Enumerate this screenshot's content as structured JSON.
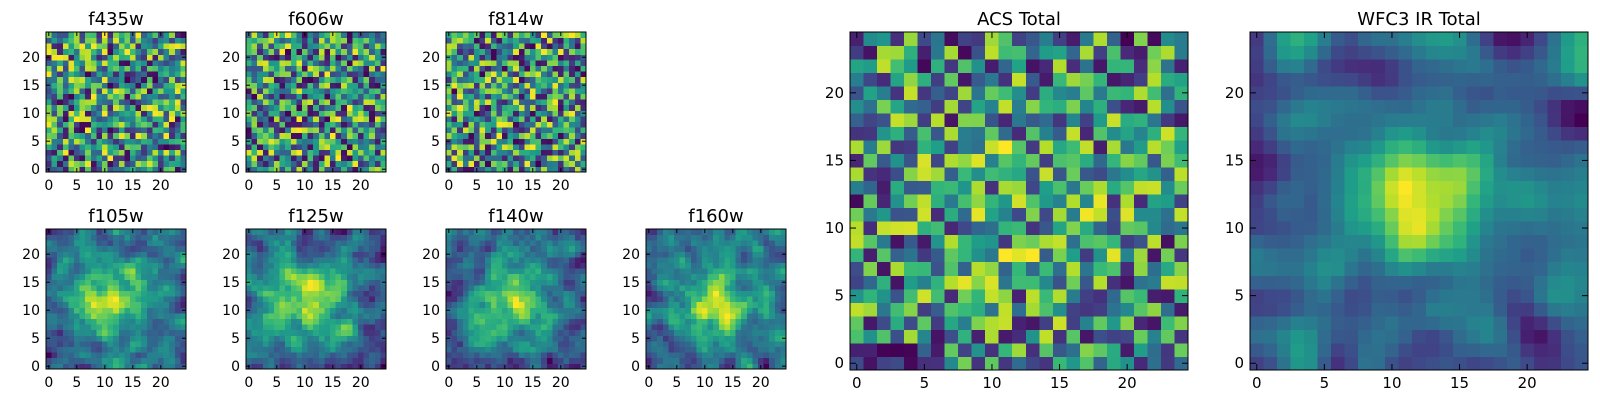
{
  "chart_data": [
    {
      "name": "f435w",
      "type": "heatmap",
      "title": "f435w",
      "grid_size": 25,
      "colormap": "viridis",
      "seed": 11,
      "smoothness": 0,
      "blob": null,
      "xlim": [
        0,
        24
      ],
      "ylim": [
        0,
        24
      ],
      "xticks": [
        {
          "v": 0,
          "label": "0"
        },
        {
          "v": 5,
          "label": "5"
        },
        {
          "v": 10,
          "label": "10"
        },
        {
          "v": 15,
          "label": "15"
        },
        {
          "v": 20,
          "label": "20"
        }
      ],
      "yticks": [
        {
          "v": 0,
          "label": "0"
        },
        {
          "v": 5,
          "label": "5"
        },
        {
          "v": 10,
          "label": "10"
        },
        {
          "v": 15,
          "label": "15"
        },
        {
          "v": 20,
          "label": "20"
        }
      ]
    },
    {
      "name": "f606w",
      "type": "heatmap",
      "title": "f606w",
      "grid_size": 25,
      "colormap": "viridis",
      "seed": 23,
      "smoothness": 0,
      "blob": null,
      "xlim": [
        0,
        24
      ],
      "ylim": [
        0,
        24
      ],
      "xticks": [
        {
          "v": 0,
          "label": "0"
        },
        {
          "v": 5,
          "label": "5"
        },
        {
          "v": 10,
          "label": "10"
        },
        {
          "v": 15,
          "label": "15"
        },
        {
          "v": 20,
          "label": "20"
        }
      ],
      "yticks": [
        {
          "v": 0,
          "label": "0"
        },
        {
          "v": 5,
          "label": "5"
        },
        {
          "v": 10,
          "label": "10"
        },
        {
          "v": 15,
          "label": "15"
        },
        {
          "v": 20,
          "label": "20"
        }
      ]
    },
    {
      "name": "f814w",
      "type": "heatmap",
      "title": "f814w",
      "grid_size": 25,
      "colormap": "viridis",
      "seed": 37,
      "smoothness": 0,
      "blob": null,
      "xlim": [
        0,
        24
      ],
      "ylim": [
        0,
        24
      ],
      "xticks": [
        {
          "v": 0,
          "label": "0"
        },
        {
          "v": 5,
          "label": "5"
        },
        {
          "v": 10,
          "label": "10"
        },
        {
          "v": 15,
          "label": "15"
        },
        {
          "v": 20,
          "label": "20"
        }
      ],
      "yticks": [
        {
          "v": 0,
          "label": "0"
        },
        {
          "v": 5,
          "label": "5"
        },
        {
          "v": 10,
          "label": "10"
        },
        {
          "v": 15,
          "label": "15"
        },
        {
          "v": 20,
          "label": "20"
        }
      ]
    },
    {
      "name": "f105w",
      "type": "heatmap",
      "title": "f105w",
      "grid_size": 25,
      "colormap": "viridis",
      "seed": 41,
      "smoothness": 1,
      "blob": {
        "center_x": 11,
        "center_y": 12,
        "sigma": 5.5,
        "amplitude": 0.5
      },
      "xlim": [
        0,
        24
      ],
      "ylim": [
        0,
        24
      ],
      "xticks": [
        {
          "v": 0,
          "label": "0"
        },
        {
          "v": 5,
          "label": "5"
        },
        {
          "v": 10,
          "label": "10"
        },
        {
          "v": 15,
          "label": "15"
        },
        {
          "v": 20,
          "label": "20"
        }
      ],
      "yticks": [
        {
          "v": 0,
          "label": "0"
        },
        {
          "v": 5,
          "label": "5"
        },
        {
          "v": 10,
          "label": "10"
        },
        {
          "v": 15,
          "label": "15"
        },
        {
          "v": 20,
          "label": "20"
        }
      ]
    },
    {
      "name": "f125w",
      "type": "heatmap",
      "title": "f125w",
      "grid_size": 25,
      "colormap": "viridis",
      "seed": 53,
      "smoothness": 1,
      "blob": {
        "center_x": 11,
        "center_y": 12,
        "sigma": 5.0,
        "amplitude": 0.45
      },
      "xlim": [
        0,
        24
      ],
      "ylim": [
        0,
        24
      ],
      "xticks": [
        {
          "v": 0,
          "label": "0"
        },
        {
          "v": 5,
          "label": "5"
        },
        {
          "v": 10,
          "label": "10"
        },
        {
          "v": 15,
          "label": "15"
        },
        {
          "v": 20,
          "label": "20"
        }
      ],
      "yticks": [
        {
          "v": 0,
          "label": "0"
        },
        {
          "v": 5,
          "label": "5"
        },
        {
          "v": 10,
          "label": "10"
        },
        {
          "v": 15,
          "label": "15"
        },
        {
          "v": 20,
          "label": "20"
        }
      ]
    },
    {
      "name": "f140w",
      "type": "heatmap",
      "title": "f140w",
      "grid_size": 25,
      "colormap": "viridis",
      "seed": 67,
      "smoothness": 1,
      "blob": {
        "center_x": 11,
        "center_y": 12,
        "sigma": 5.5,
        "amplitude": 0.5
      },
      "xlim": [
        0,
        24
      ],
      "ylim": [
        0,
        24
      ],
      "xticks": [
        {
          "v": 0,
          "label": "0"
        },
        {
          "v": 5,
          "label": "5"
        },
        {
          "v": 10,
          "label": "10"
        },
        {
          "v": 15,
          "label": "15"
        },
        {
          "v": 20,
          "label": "20"
        }
      ],
      "yticks": [
        {
          "v": 0,
          "label": "0"
        },
        {
          "v": 5,
          "label": "5"
        },
        {
          "v": 10,
          "label": "10"
        },
        {
          "v": 15,
          "label": "15"
        },
        {
          "v": 20,
          "label": "20"
        }
      ]
    },
    {
      "name": "f160w",
      "type": "heatmap",
      "title": "f160w",
      "grid_size": 25,
      "colormap": "viridis",
      "seed": 79,
      "smoothness": 1,
      "blob": {
        "center_x": 12,
        "center_y": 11,
        "sigma": 4.5,
        "amplitude": 0.5
      },
      "xlim": [
        0,
        24
      ],
      "ylim": [
        0,
        24
      ],
      "xticks": [
        {
          "v": 0,
          "label": "0"
        },
        {
          "v": 5,
          "label": "5"
        },
        {
          "v": 10,
          "label": "10"
        },
        {
          "v": 15,
          "label": "15"
        },
        {
          "v": 20,
          "label": "20"
        }
      ],
      "yticks": [
        {
          "v": 0,
          "label": "0"
        },
        {
          "v": 5,
          "label": "5"
        },
        {
          "v": 10,
          "label": "10"
        },
        {
          "v": 15,
          "label": "15"
        },
        {
          "v": 20,
          "label": "20"
        }
      ]
    },
    {
      "name": "acs-total",
      "type": "heatmap",
      "title": "ACS Total",
      "grid_size": 25,
      "colormap": "viridis",
      "seed": 97,
      "smoothness": 0,
      "blob": {
        "center_x": 12,
        "center_y": 12,
        "sigma": 9,
        "amplitude": 0.1
      },
      "xlim": [
        0,
        24
      ],
      "ylim": [
        0,
        24
      ],
      "xticks": [
        {
          "v": 0,
          "label": "0"
        },
        {
          "v": 5,
          "label": "5"
        },
        {
          "v": 10,
          "label": "10"
        },
        {
          "v": 15,
          "label": "15"
        },
        {
          "v": 20,
          "label": "20"
        }
      ],
      "yticks": [
        {
          "v": 0,
          "label": "0"
        },
        {
          "v": 5,
          "label": "5"
        },
        {
          "v": 10,
          "label": "10"
        },
        {
          "v": 15,
          "label": "15"
        },
        {
          "v": 20,
          "label": "20"
        }
      ]
    },
    {
      "name": "wfc3-ir-total",
      "type": "heatmap",
      "title": "WFC3 IR Total",
      "grid_size": 25,
      "colormap": "viridis",
      "seed": 113,
      "smoothness": 2,
      "blob": {
        "center_x": 12,
        "center_y": 12,
        "sigma": 3.5,
        "amplitude": 0.55
      },
      "xlim": [
        0,
        24
      ],
      "ylim": [
        0,
        24
      ],
      "xticks": [
        {
          "v": 0,
          "label": "0"
        },
        {
          "v": 5,
          "label": "5"
        },
        {
          "v": 10,
          "label": "10"
        },
        {
          "v": 15,
          "label": "15"
        },
        {
          "v": 20,
          "label": "20"
        }
      ],
      "yticks": [
        {
          "v": 0,
          "label": "0"
        },
        {
          "v": 5,
          "label": "5"
        },
        {
          "v": 10,
          "label": "10"
        },
        {
          "v": 15,
          "label": "15"
        },
        {
          "v": 20,
          "label": "20"
        }
      ]
    }
  ]
}
